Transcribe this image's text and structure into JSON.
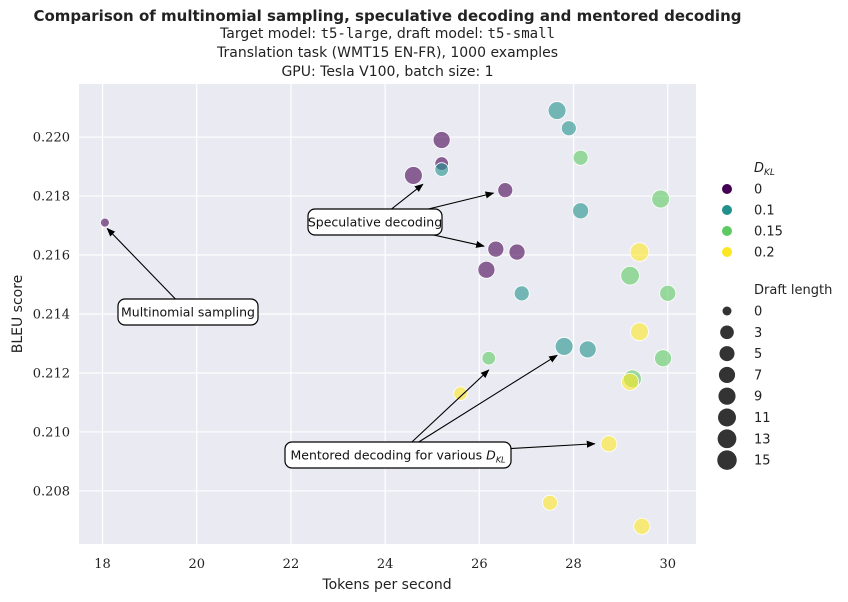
{
  "header": {
    "title": "Comparison of multinomial sampling, speculative decoding and mentored decoding",
    "line1_a": "Target model: ",
    "line1_target": "t5-large",
    "line1_b": ", draft model: ",
    "line1_draft": "t5-small",
    "line2": "Translation task (WMT15 EN-FR), 1000 examples",
    "line3": "GPU: Tesla V100, batch size: 1"
  },
  "chart_data": {
    "type": "scatter",
    "xlabel": "Tokens per second",
    "ylabel": "BLEU score",
    "xlim": [
      17.5,
      30.6
    ],
    "ylim": [
      0.2062,
      0.2218
    ],
    "xticks": [
      "18",
      "20",
      "22",
      "24",
      "26",
      "28",
      "30"
    ],
    "yticks": [
      "0.208",
      "0.210",
      "0.212",
      "0.214",
      "0.216",
      "0.218",
      "0.220"
    ],
    "xtick_values": [
      18,
      20,
      22,
      24,
      26,
      28,
      30
    ],
    "ytick_values": [
      0.208,
      0.21,
      0.212,
      0.214,
      0.216,
      0.218,
      0.22
    ],
    "grid": true,
    "legend_placement": "right",
    "hue_legend": {
      "title": "D_KL",
      "entries": [
        {
          "label": "0",
          "color": "#440154"
        },
        {
          "label": "0.1",
          "color": "#21918c"
        },
        {
          "label": "0.15",
          "color": "#5ec962"
        },
        {
          "label": "0.2",
          "color": "#fde725"
        }
      ]
    },
    "size_legend": {
      "title": "Draft length",
      "entries": [
        "0",
        "3",
        "5",
        "7",
        "9",
        "11",
        "13",
        "15"
      ]
    },
    "points": [
      {
        "x": 18.05,
        "y": 0.2171,
        "dkl": "0",
        "draft": 0
      },
      {
        "x": 25.2,
        "y": 0.2199,
        "dkl": "0",
        "draft": 9
      },
      {
        "x": 25.2,
        "y": 0.2191,
        "dkl": "0",
        "draft": 3
      },
      {
        "x": 24.6,
        "y": 0.2187,
        "dkl": "0",
        "draft": 11
      },
      {
        "x": 26.55,
        "y": 0.2182,
        "dkl": "0",
        "draft": 5
      },
      {
        "x": 26.35,
        "y": 0.2162,
        "dkl": "0",
        "draft": 7
      },
      {
        "x": 26.8,
        "y": 0.2161,
        "dkl": "0",
        "draft": 7
      },
      {
        "x": 26.15,
        "y": 0.2155,
        "dkl": "0",
        "draft": 9
      },
      {
        "x": 25.2,
        "y": 0.2189,
        "dkl": "0.1",
        "draft": 3
      },
      {
        "x": 27.65,
        "y": 0.2209,
        "dkl": "0.1",
        "draft": 11
      },
      {
        "x": 27.9,
        "y": 0.2203,
        "dkl": "0.1",
        "draft": 5
      },
      {
        "x": 28.15,
        "y": 0.2175,
        "dkl": "0.1",
        "draft": 7
      },
      {
        "x": 26.9,
        "y": 0.2147,
        "dkl": "0.1",
        "draft": 5
      },
      {
        "x": 27.8,
        "y": 0.2129,
        "dkl": "0.1",
        "draft": 11
      },
      {
        "x": 28.3,
        "y": 0.2128,
        "dkl": "0.1",
        "draft": 9
      },
      {
        "x": 28.15,
        "y": 0.2193,
        "dkl": "0.15",
        "draft": 5
      },
      {
        "x": 29.85,
        "y": 0.2179,
        "dkl": "0.15",
        "draft": 11
      },
      {
        "x": 29.2,
        "y": 0.2153,
        "dkl": "0.15",
        "draft": 13
      },
      {
        "x": 30.0,
        "y": 0.2147,
        "dkl": "0.15",
        "draft": 7
      },
      {
        "x": 26.2,
        "y": 0.2125,
        "dkl": "0.15",
        "draft": 3
      },
      {
        "x": 29.9,
        "y": 0.2125,
        "dkl": "0.15",
        "draft": 9
      },
      {
        "x": 29.25,
        "y": 0.2118,
        "dkl": "0.15",
        "draft": 11
      },
      {
        "x": 29.4,
        "y": 0.2161,
        "dkl": "0.2",
        "draft": 13
      },
      {
        "x": 29.4,
        "y": 0.2134,
        "dkl": "0.2",
        "draft": 11
      },
      {
        "x": 29.2,
        "y": 0.2117,
        "dkl": "0.2",
        "draft": 9
      },
      {
        "x": 25.6,
        "y": 0.2113,
        "dkl": "0.2",
        "draft": 3
      },
      {
        "x": 28.75,
        "y": 0.2096,
        "dkl": "0.2",
        "draft": 7
      },
      {
        "x": 27.5,
        "y": 0.2076,
        "dkl": "0.2",
        "draft": 5
      },
      {
        "x": 29.45,
        "y": 0.2068,
        "dkl": "0.2",
        "draft": 7
      }
    ],
    "annotations": [
      {
        "text": "Multinomial sampling",
        "targets": [
          {
            "x": 18.1,
            "y": 0.2169
          }
        ]
      },
      {
        "text": "Speculative decoding",
        "targets": [
          {
            "x": 24.8,
            "y": 0.2184
          },
          {
            "x": 26.3,
            "y": 0.2181
          },
          {
            "x": 26.1,
            "y": 0.2163
          }
        ]
      },
      {
        "text": "Mentored decoding for various D_KL",
        "targets": [
          {
            "x": 26.2,
            "y": 0.2121
          },
          {
            "x": 27.65,
            "y": 0.2126
          },
          {
            "x": 28.45,
            "y": 0.2096
          }
        ]
      }
    ]
  }
}
